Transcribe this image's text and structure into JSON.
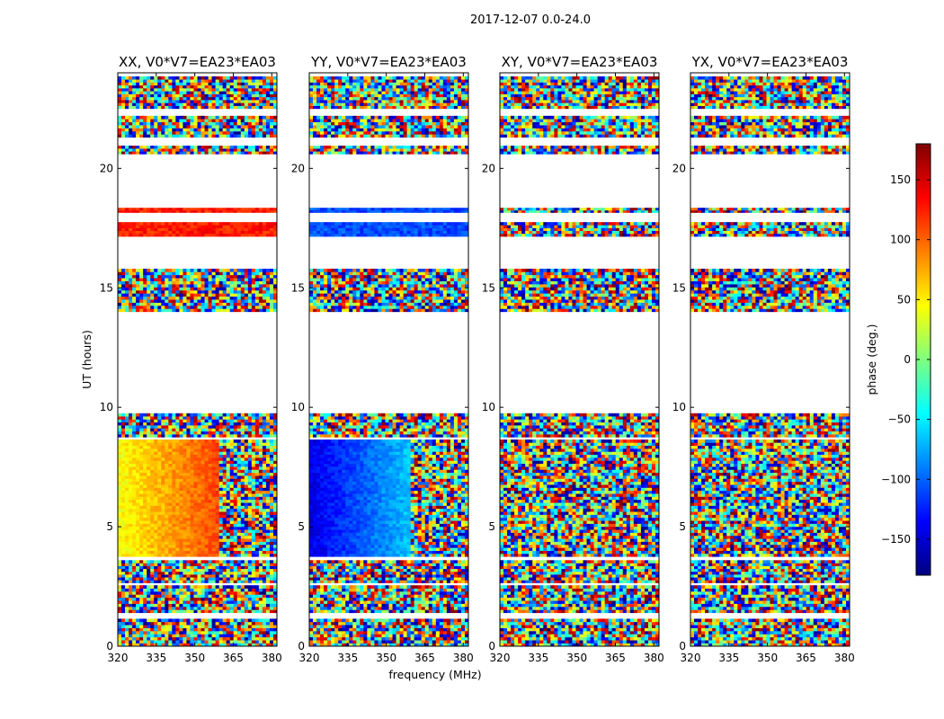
{
  "figure": {
    "suptitle": "2017-12-07 0.0-24.0",
    "xlabel": "frequency (MHz)",
    "ylabel": "UT (hours)",
    "colorbar": {
      "label": "phase (deg.)",
      "ticks": [
        "150",
        "100",
        "50",
        "0",
        "−50",
        "−100",
        "−150"
      ],
      "tick_values": [
        150,
        100,
        50,
        0,
        -50,
        -100,
        -150
      ],
      "range": [
        -180,
        180
      ],
      "colormap": "jet",
      "colors": [
        "#00007f",
        "#0000ff",
        "#007fff",
        "#00ffff",
        "#7fff7f",
        "#ffff00",
        "#ff7f00",
        "#ff0000",
        "#7f0000"
      ]
    }
  },
  "chart_data": [
    {
      "type": "heatmap",
      "title": "XX, V0*V7=EA23*EA03",
      "xlabel": "",
      "ylabel": "UT (hours)",
      "xlim": [
        320,
        382
      ],
      "ylim": [
        0,
        24
      ],
      "xticks": [
        320,
        335,
        350,
        365,
        380
      ],
      "yticks": [
        0,
        5,
        10,
        15,
        20
      ],
      "value": "phase (deg.)",
      "pattern": "coherent"
    },
    {
      "type": "heatmap",
      "title": "YY, V0*V7=EA23*EA03",
      "xlabel": "frequency (MHz)",
      "ylabel": "",
      "xlim": [
        320,
        382
      ],
      "ylim": [
        0,
        24
      ],
      "xticks": [
        320,
        335,
        350,
        365,
        380
      ],
      "yticks": [
        0,
        5,
        10,
        15,
        20
      ],
      "value": "phase (deg.)",
      "pattern": "coherent"
    },
    {
      "type": "heatmap",
      "title": "XY, V0*V7=EA23*EA03",
      "xlabel": "",
      "ylabel": "",
      "xlim": [
        320,
        382
      ],
      "ylim": [
        0,
        24
      ],
      "xticks": [
        320,
        335,
        350,
        365,
        380
      ],
      "yticks": [
        0,
        5,
        10,
        15,
        20
      ],
      "value": "phase (deg.)",
      "pattern": "noise"
    },
    {
      "type": "heatmap",
      "title": "YX, V0*V7=EA23*EA03",
      "xlabel": "",
      "ylabel": "",
      "xlim": [
        320,
        382
      ],
      "ylim": [
        0,
        24
      ],
      "xticks": [
        320,
        335,
        350,
        365,
        380
      ],
      "yticks": [
        0,
        5,
        10,
        15,
        20
      ],
      "value": "phase (deg.)",
      "pattern": "noise"
    }
  ]
}
